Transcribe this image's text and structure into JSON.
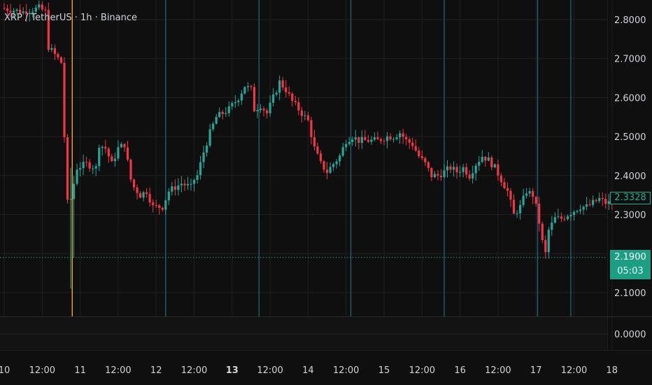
{
  "title": "XRP / TetherUS · 1h · Binance",
  "colors": {
    "background": "#0f0f0f",
    "up": "#26a69a",
    "down": "#f23645",
    "grid": "#202020",
    "session_line": "#1c5f73",
    "highlight_line": "#f5a623",
    "price_line": "#26a69a",
    "axis_text": "#d1d4dc"
  },
  "price_tags": {
    "boxed": "2.3328",
    "current": "2.1900",
    "countdown": "05:03"
  },
  "chart_data": {
    "type": "candlestick",
    "title": "XRP / TetherUS · 1h · Binance",
    "xlabel": "",
    "ylabel": "",
    "grid": true,
    "ylim": [
      2.03,
      2.85
    ],
    "y_ticks": [
      "2.8000",
      "2.7000",
      "2.6000",
      "2.5000",
      "2.4000",
      "2.3000",
      "2.1000"
    ],
    "y_tick_values": [
      2.8,
      2.7,
      2.6,
      2.5,
      2.4,
      2.3,
      2.1
    ],
    "lower_pane_tick": "0.0000",
    "x_ticks": [
      {
        "label": "10",
        "t": 0,
        "bold": false
      },
      {
        "label": "12:00",
        "t": 12,
        "bold": false
      },
      {
        "label": "11",
        "t": 24,
        "bold": false
      },
      {
        "label": "12:00",
        "t": 36,
        "bold": false
      },
      {
        "label": "12",
        "t": 48,
        "bold": false
      },
      {
        "label": "12:00",
        "t": 60,
        "bold": false
      },
      {
        "label": "13",
        "t": 72,
        "bold": true
      },
      {
        "label": "12:00",
        "t": 84,
        "bold": false
      },
      {
        "label": "14",
        "t": 96,
        "bold": false
      },
      {
        "label": "12:00",
        "t": 108,
        "bold": false
      },
      {
        "label": "15",
        "t": 120,
        "bold": false
      },
      {
        "label": "12:00",
        "t": 132,
        "bold": false
      },
      {
        "label": "16",
        "t": 144,
        "bold": false
      },
      {
        "label": "12:00",
        "t": 156,
        "bold": false
      },
      {
        "label": "17",
        "t": 168,
        "bold": false
      },
      {
        "label": "12:00",
        "t": 180,
        "bold": false
      },
      {
        "label": "18",
        "t": 192,
        "bold": false
      }
    ],
    "session_lines_t": [
      51,
      80.5,
      109.5,
      139,
      168.5,
      179
    ],
    "highlight_line_t": 21.5,
    "current_price": 2.19,
    "marked_price": 2.3328,
    "price_anchors": [
      [
        0,
        2.83
      ],
      [
        7,
        2.82
      ],
      [
        12,
        2.83
      ],
      [
        14,
        2.82
      ],
      [
        15,
        2.73
      ],
      [
        17,
        2.71
      ],
      [
        19,
        2.69
      ],
      [
        20,
        2.5
      ],
      [
        21,
        2.33
      ],
      [
        22,
        2.34
      ],
      [
        24,
        2.42
      ],
      [
        27,
        2.43
      ],
      [
        30,
        2.42
      ],
      [
        31,
        2.48
      ],
      [
        33,
        2.47
      ],
      [
        35,
        2.43
      ],
      [
        37,
        2.47
      ],
      [
        39,
        2.48
      ],
      [
        41,
        2.39
      ],
      [
        42,
        2.37
      ],
      [
        44,
        2.35
      ],
      [
        46,
        2.36
      ],
      [
        48,
        2.32
      ],
      [
        51,
        2.32
      ],
      [
        53,
        2.36
      ],
      [
        57,
        2.38
      ],
      [
        60,
        2.37
      ],
      [
        61,
        2.39
      ],
      [
        62,
        2.4
      ],
      [
        64,
        2.46
      ],
      [
        66,
        2.51
      ],
      [
        68,
        2.55
      ],
      [
        70,
        2.56
      ],
      [
        72,
        2.57
      ],
      [
        75,
        2.6
      ],
      [
        77,
        2.63
      ],
      [
        79,
        2.62
      ],
      [
        80,
        2.57
      ],
      [
        82,
        2.58
      ],
      [
        84,
        2.56
      ],
      [
        86,
        2.6
      ],
      [
        88,
        2.64
      ],
      [
        90,
        2.62
      ],
      [
        92,
        2.59
      ],
      [
        94,
        2.57
      ],
      [
        97,
        2.54
      ],
      [
        99,
        2.47
      ],
      [
        101,
        2.43
      ],
      [
        103,
        2.41
      ],
      [
        105,
        2.43
      ],
      [
        107,
        2.45
      ],
      [
        109,
        2.49
      ],
      [
        111,
        2.5
      ],
      [
        113,
        2.49
      ],
      [
        116,
        2.49
      ],
      [
        119,
        2.49
      ],
      [
        122,
        2.5
      ],
      [
        124,
        2.5
      ],
      [
        126,
        2.51
      ],
      [
        128,
        2.49
      ],
      [
        130,
        2.48
      ],
      [
        132,
        2.45
      ],
      [
        134,
        2.43
      ],
      [
        136,
        2.4
      ],
      [
        138,
        2.4
      ],
      [
        140,
        2.41
      ],
      [
        142,
        2.42
      ],
      [
        144,
        2.41
      ],
      [
        146,
        2.42
      ],
      [
        148,
        2.4
      ],
      [
        150,
        2.43
      ],
      [
        152,
        2.45
      ],
      [
        154,
        2.44
      ],
      [
        156,
        2.42
      ],
      [
        158,
        2.39
      ],
      [
        160,
        2.36
      ],
      [
        162,
        2.3
      ],
      [
        164,
        2.32
      ],
      [
        166,
        2.36
      ],
      [
        168,
        2.35
      ],
      [
        169,
        2.32
      ],
      [
        170,
        2.28
      ],
      [
        171,
        2.23
      ],
      [
        172,
        2.2
      ],
      [
        173,
        2.26
      ],
      [
        175,
        2.29
      ],
      [
        177,
        2.29
      ],
      [
        179,
        2.3
      ],
      [
        181,
        2.31
      ],
      [
        183,
        2.32
      ],
      [
        185,
        2.32
      ],
      [
        187,
        2.33
      ],
      [
        189,
        2.34
      ],
      [
        191,
        2.33
      ],
      [
        193,
        2.33
      ]
    ],
    "wick_extremes": [
      {
        "t": 21,
        "low": 2.11,
        "high": 2.42
      },
      {
        "t": 22,
        "low": 2.19,
        "high": 2.4
      }
    ]
  }
}
